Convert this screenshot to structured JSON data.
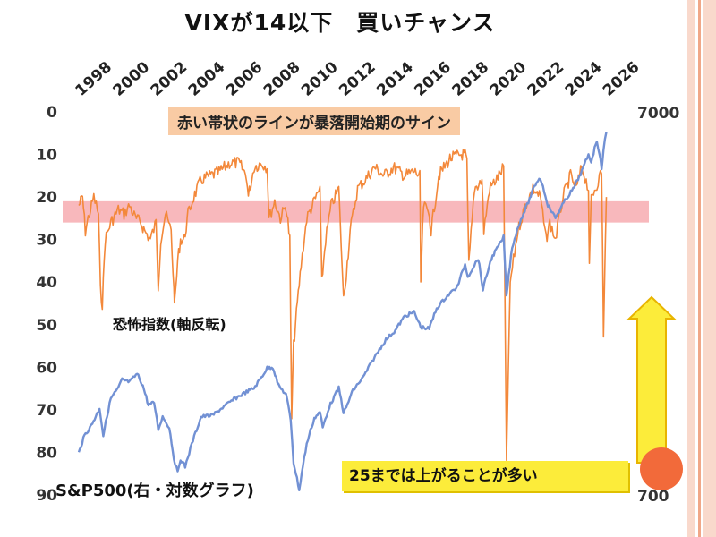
{
  "title": "VIXが14以下　買いチャンス",
  "annotations": {
    "band_note": "赤い帯状のラインが暴落開始期のサイン",
    "vix_label": "恐怖指数(軸反転)",
    "spx_label": "S&P500(右・対数グラフ)",
    "arrow_note": "25までは上がることが多い"
  },
  "colors": {
    "vix": "#f3883a",
    "spx": "#7291d4",
    "band": "#f5a0a6",
    "note_band_bg": "#f9cba4",
    "arrow_fill": "#fcec3a",
    "arrow_stroke": "#e8b400",
    "stripe_light": "#f9d9cc",
    "stripe_accent": "#f0a788",
    "circle": "#f26a3a"
  },
  "chart_data": {
    "type": "line",
    "title": "VIXが14以下　買いチャンス",
    "x_axis": {
      "position": "top",
      "ticks": [
        1998,
        2000,
        2002,
        2004,
        2006,
        2008,
        2010,
        2012,
        2014,
        2016,
        2018,
        2020,
        2022,
        2024,
        2026
      ],
      "range": [
        1997.5,
        2026
      ]
    },
    "left_axis": {
      "reversed": true,
      "range": [
        0,
        90
      ],
      "ticks": [
        0,
        10,
        20,
        30,
        40,
        50,
        60,
        70,
        80,
        90
      ]
    },
    "right_axis": {
      "scale": "log",
      "range": [
        700,
        7000
      ],
      "tick_labels": [
        "7000",
        "700"
      ]
    },
    "band": {
      "axis": "left",
      "from": 21,
      "to": 26
    },
    "series": [
      {
        "name": "恐怖指数(軸反転)",
        "axis": "left",
        "x": [
          1997.5,
          1997.7,
          1997.85,
          1998.0,
          1998.3,
          1998.55,
          1998.65,
          1998.75,
          1998.9,
          1999.2,
          1999.6,
          1999.9,
          2000.2,
          2000.5,
          2000.8,
          2001.0,
          2001.3,
          2001.6,
          2001.72,
          2001.85,
          2002.1,
          2002.4,
          2002.55,
          2002.6,
          2002.75,
          2002.9,
          2003.1,
          2003.3,
          2003.6,
          2004.0,
          2004.5,
          2005.0,
          2005.5,
          2006.0,
          2006.4,
          2006.5,
          2006.8,
          2007.2,
          2007.5,
          2007.6,
          2007.9,
          2008.2,
          2008.5,
          2008.7,
          2008.8,
          2008.9,
          2009.1,
          2009.3,
          2009.6,
          2010.0,
          2010.3,
          2010.4,
          2010.6,
          2010.9,
          2011.3,
          2011.55,
          2011.7,
          2011.9,
          2012.3,
          2012.7,
          2013.2,
          2013.7,
          2014.2,
          2014.8,
          2015.3,
          2015.6,
          2015.65,
          2015.8,
          2016.1,
          2016.2,
          2016.6,
          2017.2,
          2017.8,
          2018.0,
          2018.1,
          2018.2,
          2018.5,
          2018.9,
          2019.0,
          2019.3,
          2019.8,
          2020.05,
          2020.2,
          2020.4,
          2020.8,
          2021.2,
          2021.6,
          2022.0,
          2022.3,
          2022.5,
          2022.8,
          2023.2,
          2023.6,
          2023.9,
          2024.2,
          2024.55,
          2024.6,
          2024.7,
          2025.0,
          2025.25,
          2025.35,
          2025.5
        ],
        "values": [
          22,
          20,
          28,
          25,
          20,
          24,
          42,
          45,
          30,
          26,
          23,
          24,
          22,
          25,
          26,
          28,
          30,
          26,
          41,
          30,
          24,
          28,
          42,
          45,
          35,
          30,
          30,
          24,
          20,
          16,
          15,
          14,
          12,
          12,
          15,
          20,
          13,
          12,
          13,
          25,
          21,
          25,
          22,
          30,
          72,
          55,
          45,
          36,
          25,
          21,
          18,
          40,
          30,
          22,
          18,
          44,
          38,
          28,
          18,
          16,
          13,
          15,
          13,
          15,
          14,
          15,
          40,
          22,
          24,
          28,
          15,
          11,
          10,
          10,
          12,
          36,
          18,
          16,
          28,
          18,
          15,
          13,
          82,
          40,
          28,
          22,
          18,
          20,
          30,
          26,
          30,
          20,
          15,
          18,
          13,
          18,
          37,
          20,
          17,
          14,
          52,
          20
        ],
        "color": "#f3883a"
      },
      {
        "name": "S&P500(右・対数グラフ)",
        "axis": "right",
        "x": [
          1997.5,
          1997.8,
          1998.1,
          1998.4,
          1998.6,
          1998.8,
          1999.2,
          1999.6,
          1999.8,
          2000.2,
          2000.6,
          2000.9,
          2001.2,
          2001.5,
          2001.72,
          2001.95,
          2002.3,
          2002.55,
          2002.75,
          2002.9,
          2003.15,
          2003.5,
          2004.0,
          2004.6,
          2005.2,
          2005.8,
          2006.4,
          2006.8,
          2007.2,
          2007.5,
          2007.8,
          2008.1,
          2008.5,
          2008.75,
          2008.9,
          2009.2,
          2009.6,
          2010.0,
          2010.3,
          2010.45,
          2010.8,
          2011.3,
          2011.55,
          2011.7,
          2012.0,
          2012.6,
          2013.2,
          2013.8,
          2014.3,
          2014.8,
          2015.3,
          2015.65,
          2016.1,
          2016.5,
          2017.0,
          2017.6,
          2018.0,
          2018.15,
          2018.7,
          2018.95,
          2019.4,
          2019.9,
          2020.05,
          2020.2,
          2020.5,
          2020.9,
          2021.3,
          2021.8,
          2022.0,
          2022.4,
          2022.8,
          2023.3,
          2023.8,
          2024.2,
          2024.55,
          2024.7,
          2025.0,
          2025.25,
          2025.35,
          2025.5
        ],
        "values": [
          900,
          1000,
          1050,
          1120,
          1180,
          1000,
          1250,
          1330,
          1400,
          1380,
          1450,
          1350,
          1200,
          1220,
          1040,
          1120,
          1050,
          870,
          800,
          870,
          830,
          950,
          1120,
          1130,
          1190,
          1250,
          1300,
          1330,
          1420,
          1500,
          1510,
          1350,
          1280,
          1100,
          850,
          720,
          950,
          1110,
          1150,
          1050,
          1190,
          1330,
          1150,
          1180,
          1300,
          1420,
          1600,
          1780,
          1880,
          2050,
          2100,
          1920,
          1900,
          2150,
          2300,
          2450,
          2800,
          2600,
          2900,
          2400,
          2900,
          3200,
          3300,
          2300,
          3100,
          3600,
          4000,
          4600,
          4700,
          4000,
          3700,
          4100,
          4450,
          4900,
          5400,
          5200,
          5900,
          5000,
          5600,
          6200
        ],
        "color": "#7291d4"
      }
    ]
  }
}
